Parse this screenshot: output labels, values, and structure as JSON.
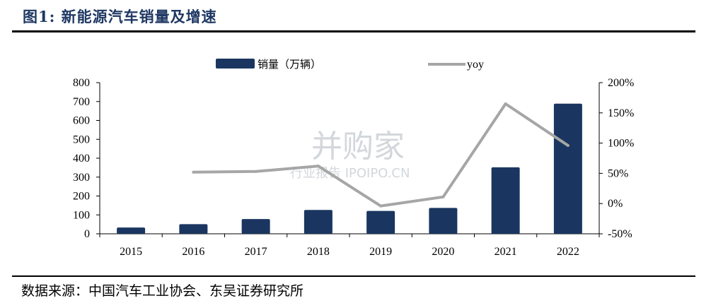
{
  "header": {
    "title": "图1: 新能源汽车销量及增速"
  },
  "footer": {
    "source": "数据来源：中国汽车工业协会、东吴证券研究所"
  },
  "watermark": {
    "main": "并购家",
    "sub": "行业报告 IPOIPO.CN"
  },
  "chart_data": {
    "type": "bar",
    "categories": [
      "2015",
      "2016",
      "2017",
      "2018",
      "2019",
      "2020",
      "2021",
      "2022"
    ],
    "series": [
      {
        "name": "销量（万辆）",
        "type": "bar",
        "axis": "left",
        "values": [
          33,
          51,
          78,
          126,
          121,
          137,
          352,
          689
        ],
        "color": "#1a3660"
      },
      {
        "name": "yoy",
        "type": "line",
        "axis": "right",
        "values": [
          null,
          52,
          53,
          62,
          -4,
          11,
          165,
          96
        ],
        "color": "#a6a6a6"
      }
    ],
    "y_left": {
      "ylim": [
        0,
        800
      ],
      "ticks": [
        "0",
        "100",
        "200",
        "300",
        "400",
        "500",
        "600",
        "700",
        "800"
      ]
    },
    "y_right": {
      "ylim": [
        -50,
        200
      ],
      "ticks": [
        "-50%",
        "0%",
        "50%",
        "100%",
        "150%",
        "200%"
      ]
    },
    "legend_position": "top-center",
    "grid": false
  }
}
